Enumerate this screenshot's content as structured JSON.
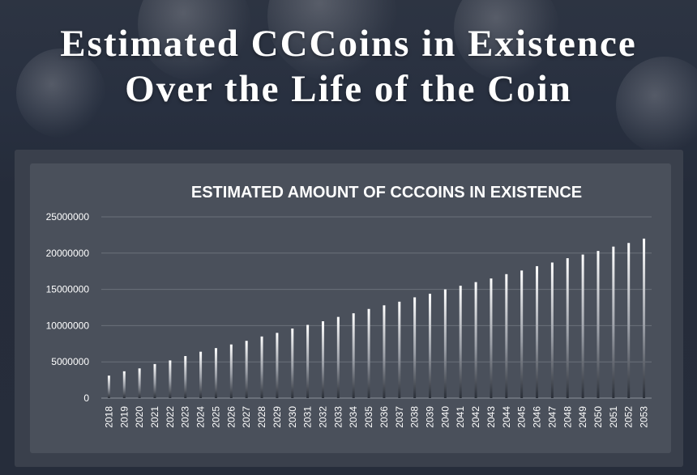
{
  "page": {
    "title_line1": "Estimated CCCoins in Existence",
    "title_line2": "Over the Life of the Coin"
  },
  "colors": {
    "background": "#2a3140",
    "panel": "#4a505b",
    "gridline": "#6a707a",
    "bar_top": "#ffffff",
    "bar_bottom": "#2a2f38"
  },
  "chart_data": {
    "type": "bar",
    "title": "ESTIMATED AMOUNT OF CCCOINS IN EXISTENCE",
    "xlabel": "",
    "ylabel": "",
    "ylim": [
      0,
      25000000
    ],
    "yticks": [
      0,
      5000000,
      10000000,
      15000000,
      20000000,
      25000000
    ],
    "grid": true,
    "legend": "none",
    "categories": [
      "2018",
      "2019",
      "2020",
      "2021",
      "2022",
      "2023",
      "2024",
      "2025",
      "2026",
      "2027",
      "2028",
      "2029",
      "2030",
      "2031",
      "2032",
      "2033",
      "2034",
      "2035",
      "2036",
      "2037",
      "2038",
      "2039",
      "2040",
      "2041",
      "2042",
      "2043",
      "2044",
      "2045",
      "2046",
      "2047",
      "2048",
      "2049",
      "2050",
      "2051",
      "2052",
      "2053"
    ],
    "values": [
      3100000,
      3700000,
      4100000,
      4700000,
      5200000,
      5800000,
      6400000,
      6900000,
      7400000,
      7900000,
      8500000,
      9000000,
      9600000,
      10100000,
      10600000,
      11200000,
      11700000,
      12300000,
      12800000,
      13300000,
      13900000,
      14400000,
      15000000,
      15500000,
      16000000,
      16500000,
      17100000,
      17600000,
      18200000,
      18700000,
      19300000,
      19800000,
      20300000,
      20900000,
      21400000,
      22000000
    ]
  }
}
